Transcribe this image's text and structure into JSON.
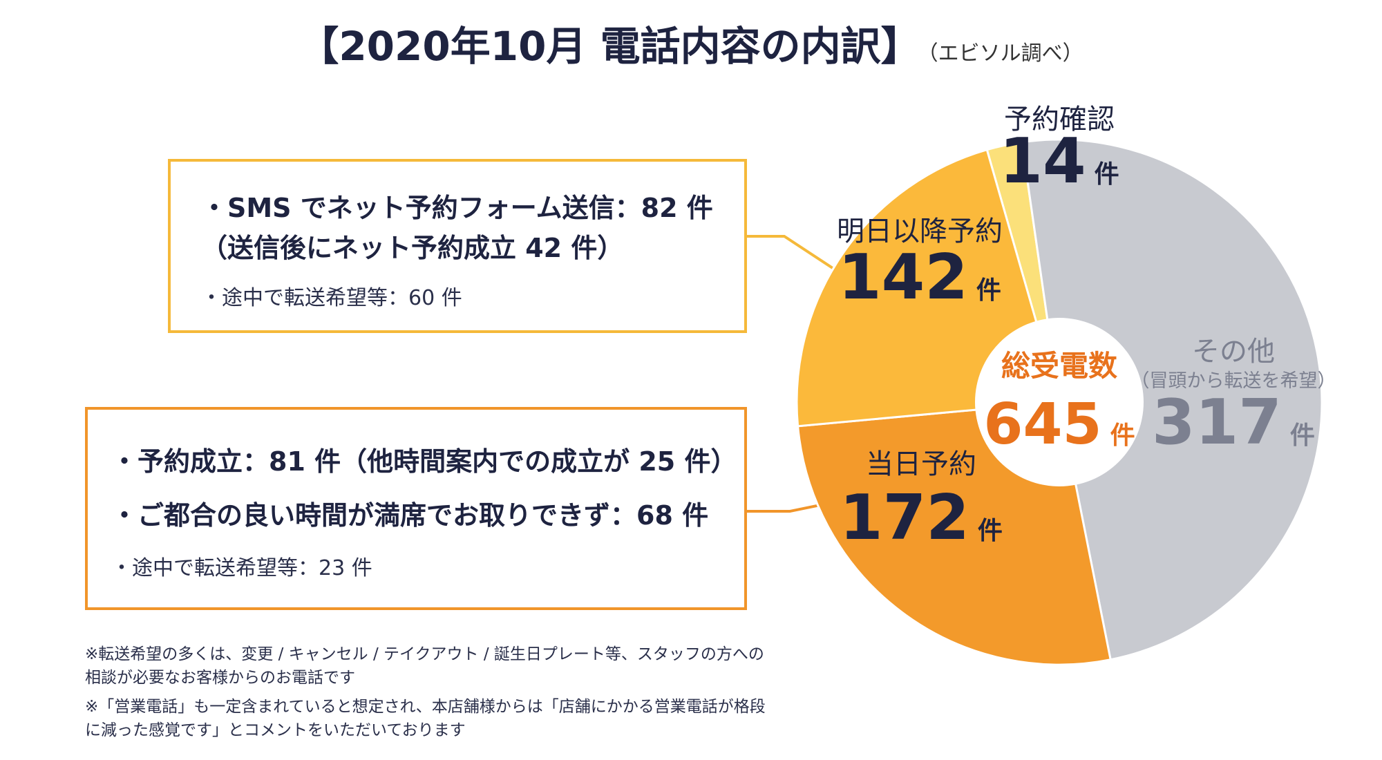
{
  "title": {
    "main": "【2020年10月  電話内容の内訳】",
    "source": "（エビソル調べ）"
  },
  "callout_yellow": {
    "line1": "・SMS でネット予約フォーム送信：82 件",
    "line2": "（送信後にネット予約成立 42 件）",
    "line3": "・途中で転送希望等：60 件",
    "border_color": "#f5b93a"
  },
  "callout_orange": {
    "line1": "・予約成立：81 件（他時間案内での成立が 25 件）",
    "line2": "・ご都合の良い時間が満席でお取りできず：68 件",
    "line3": "・途中で転送希望等：23 件",
    "border_color": "#f1952a"
  },
  "notes": [
    "※転送希望の多くは、変更 / キャンセル / テイクアウト / 誕生日プレート等、スタッフの方への相談が必要なお客様からのお電話です",
    "※「営業電話」も一定含まれていると想定され、本店舗様からは「店舗にかかる営業電話が格段に減った感覚です」とコメントをいただいております"
  ],
  "chart_data": {
    "type": "pie",
    "title": "",
    "center_label": "総受電数",
    "total": 645,
    "total_unit": "件",
    "center_color": "#e8721c",
    "slices": [
      {
        "name": "予約確認",
        "sub": "",
        "value": 14,
        "unit": "件",
        "color": "#fbe07a",
        "label_color": "#1e2340"
      },
      {
        "name": "その他",
        "sub": "（冒頭から転送を希望）",
        "value": 317,
        "unit": "件",
        "color": "#c8cad0",
        "label_color": "#7c8090"
      },
      {
        "name": "当日予約",
        "sub": "",
        "value": 172,
        "unit": "件",
        "color": "#f39a2b",
        "label_color": "#1e2340"
      },
      {
        "name": "明日以降予約",
        "sub": "",
        "value": 142,
        "unit": "件",
        "color": "#fbb93b",
        "label_color": "#1e2340"
      }
    ]
  }
}
